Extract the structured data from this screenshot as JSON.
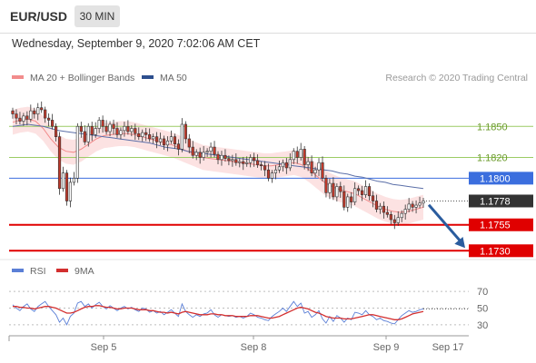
{
  "header": {
    "symbol": "EUR/USD",
    "timeframe": "30 MIN",
    "datetime": "Wednesday, September 9, 2020 7:02:06 AM CET"
  },
  "legend": {
    "ma20_label": "MA 20 + Bollinger Bands",
    "ma50_label": "MA 50",
    "credit": "Research © 2020 Trading Central",
    "rsi_label": "RSI",
    "rsi_ma_label": "9MA"
  },
  "colors": {
    "candle_fill": "#c0392b",
    "candle_outline": "#333333",
    "bollinger_band": "#fbd8d8",
    "ma20": "#f28c8c",
    "ma50": "#5b6fa8",
    "resistance": "#9ccc65",
    "resistance_text": "#6a9a2a",
    "pivot": "#3b6ede",
    "support": "#e00000",
    "current": "#333333",
    "arrow": "#2a5c9e",
    "rsi": "#5b7fd6",
    "rsi_ma": "#d32f2f"
  },
  "chart_data": [
    {
      "type": "candlestick",
      "title": "EUR/USD 30 MIN",
      "x_labels": [
        "Sep 5",
        "Sep 8",
        "Sep 9",
        "Sep 17"
      ],
      "ylim": [
        1.1725,
        1.188
      ],
      "close_series": [
        1.1862,
        1.1858,
        1.1855,
        1.186,
        1.1857,
        1.1865,
        1.1862,
        1.1868,
        1.1866,
        1.1858,
        1.1856,
        1.185,
        1.184,
        1.179,
        1.1805,
        1.1778,
        1.1796,
        1.18,
        1.185,
        1.1845,
        1.1835,
        1.185,
        1.1842,
        1.1848,
        1.1856,
        1.185,
        1.1845,
        1.1852,
        1.1848,
        1.1842,
        1.1846,
        1.185,
        1.1845,
        1.1848,
        1.1843,
        1.184,
        1.1844,
        1.1842,
        1.1838,
        1.184,
        1.1835,
        1.1838,
        1.1832,
        1.1836,
        1.184,
        1.1833,
        1.1828,
        1.1852,
        1.1838,
        1.183,
        1.1822,
        1.1825,
        1.182,
        1.1825,
        1.1826,
        1.183,
        1.1823,
        1.1818,
        1.1822,
        1.1819,
        1.1817,
        1.1818,
        1.1815,
        1.1816,
        1.1814,
        1.1815,
        1.182,
        1.1817,
        1.1813,
        1.1812,
        1.1808,
        1.18,
        1.1805,
        1.1808,
        1.1811,
        1.1815,
        1.181,
        1.1818,
        1.1826,
        1.182,
        1.1828,
        1.1813,
        1.1816,
        1.1805,
        1.1808,
        1.1815,
        1.18,
        1.1786,
        1.1795,
        1.1782,
        1.1792,
        1.1787,
        1.1772,
        1.1782,
        1.1777,
        1.179,
        1.1788,
        1.1784,
        1.1792,
        1.1783,
        1.1778,
        1.177,
        1.1773,
        1.1767,
        1.1765,
        1.176,
        1.1757,
        1.1762,
        1.1766,
        1.177,
        1.1775,
        1.1772,
        1.1774,
        1.1776,
        1.1778
      ],
      "levels": [
        {
          "label": "1.1850",
          "value": 1.185,
          "kind": "resistance"
        },
        {
          "label": "1.1820",
          "value": 1.182,
          "kind": "resistance"
        },
        {
          "label": "1.1800",
          "value": 1.18,
          "kind": "pivot"
        },
        {
          "label": "1.1778",
          "value": 1.1778,
          "kind": "current"
        },
        {
          "label": "1.1755",
          "value": 1.1755,
          "kind": "support"
        },
        {
          "label": "1.1730",
          "value": 1.173,
          "kind": "support"
        }
      ],
      "ma20": {
        "name": "MA 20 + Bollinger Bands",
        "values": [
          1.1854,
          1.1856,
          1.1857,
          1.1855,
          1.1848,
          1.1838,
          1.183,
          1.1826,
          1.1825,
          1.1828,
          1.1833,
          1.1838,
          1.1841,
          1.1842,
          1.1843,
          1.1843,
          1.1842,
          1.184,
          1.1838,
          1.1836,
          1.1834,
          1.1832,
          1.1829,
          1.1826,
          1.1823,
          1.182,
          1.1819,
          1.1818,
          1.1817,
          1.1816,
          1.1815,
          1.1814,
          1.1813,
          1.1812,
          1.1812,
          1.1813,
          1.1814,
          1.1815,
          1.1813,
          1.1808,
          1.1802,
          1.1796,
          1.1792,
          1.1789,
          1.1787,
          1.1785,
          1.1781,
          1.1777,
          1.1773,
          1.177,
          1.1768,
          1.1767,
          1.1768,
          1.177,
          1.1772
        ]
      },
      "ma50": {
        "name": "MA 50",
        "values": [
          1.185,
          1.1851,
          1.1852,
          1.1851,
          1.185,
          1.1848,
          1.1846,
          1.1845,
          1.1844,
          1.1843,
          1.1842,
          1.1841,
          1.184,
          1.1839,
          1.1838,
          1.1837,
          1.1836,
          1.1835,
          1.1834,
          1.1832,
          1.183,
          1.1829,
          1.1828,
          1.1826,
          1.1825,
          1.1824,
          1.1823,
          1.1822,
          1.1821,
          1.182,
          1.1819,
          1.1818,
          1.1817,
          1.1816,
          1.1815,
          1.1814,
          1.1813,
          1.1812,
          1.1811,
          1.181,
          1.1809,
          1.1808,
          1.1807,
          1.1805,
          1.1804,
          1.1802,
          1.1801,
          1.1799,
          1.1797,
          1.1796,
          1.1794,
          1.1793,
          1.1792,
          1.1791,
          1.179
        ]
      },
      "bollinger_width": 0.0012,
      "forecast": {
        "from": 1.1776,
        "to": 1.173
      }
    },
    {
      "type": "line",
      "title": "RSI",
      "yticks": [
        70,
        50,
        30
      ],
      "ylim": [
        20,
        80
      ],
      "series": [
        {
          "name": "RSI",
          "values": [
            54,
            50,
            47,
            52,
            55,
            49,
            46,
            52,
            55,
            58,
            52,
            47,
            42,
            33,
            38,
            30,
            40,
            44,
            56,
            58,
            52,
            55,
            50,
            54,
            57,
            52,
            49,
            53,
            50,
            47,
            50,
            52,
            49,
            51,
            48,
            46,
            50,
            49,
            45,
            47,
            44,
            46,
            42,
            45,
            48,
            44,
            40,
            55,
            46,
            42,
            39,
            42,
            40,
            43,
            44,
            48,
            42,
            39,
            42,
            41,
            40,
            41,
            39,
            40,
            38,
            40,
            44,
            42,
            39,
            38,
            36,
            35,
            40,
            43,
            46,
            50,
            46,
            52,
            58,
            52,
            56,
            44,
            46,
            39,
            42,
            47,
            37,
            32,
            40,
            34,
            41,
            38,
            33,
            38,
            36,
            45,
            44,
            42,
            47,
            42,
            40,
            36,
            38,
            35,
            34,
            32,
            31,
            36,
            41,
            44,
            47,
            45,
            46,
            48,
            49
          ]
        },
        {
          "name": "9MA",
          "values": [
            52,
            52,
            51,
            51,
            50,
            50,
            49,
            50,
            51,
            52,
            52,
            51,
            50,
            48,
            46,
            44,
            44,
            45,
            47,
            49,
            51,
            52,
            52,
            53,
            53,
            52,
            51,
            51,
            50,
            49,
            49,
            50,
            50,
            50,
            49,
            48,
            48,
            48,
            47,
            47,
            46,
            45,
            45,
            44,
            45,
            44,
            43,
            45,
            46,
            45,
            44,
            43,
            42,
            42,
            42,
            43,
            43,
            42,
            42,
            41,
            41,
            41,
            40,
            40,
            40,
            40,
            41,
            41,
            41,
            40,
            39,
            38,
            38,
            39,
            40,
            42,
            44,
            46,
            48,
            50,
            51,
            50,
            49,
            47,
            45,
            44,
            42,
            40,
            39,
            38,
            38,
            38,
            37,
            37,
            37,
            38,
            39,
            40,
            41,
            42,
            42,
            41,
            40,
            39,
            38,
            37,
            36,
            36,
            37,
            39,
            41,
            43,
            44,
            45,
            46
          ]
        }
      ]
    }
  ]
}
